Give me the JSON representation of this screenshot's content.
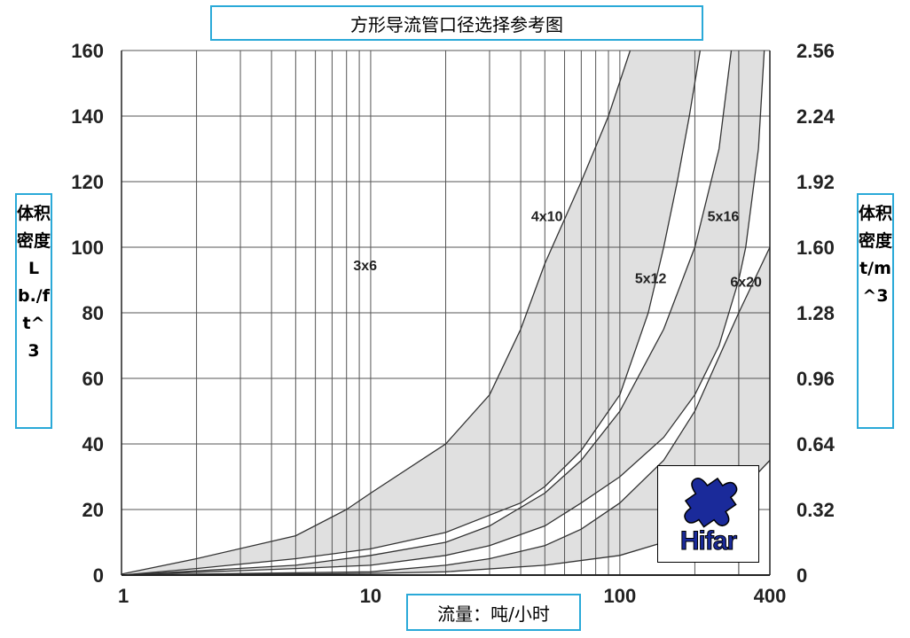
{
  "title": "方形导流管口径选择参考图",
  "xlabel": "流量：吨/小时",
  "ylabel_left": "体积密度Lb./ft^3",
  "ylabel_right": "体积密度t/m^3",
  "logo_text": "Hifar",
  "colors": {
    "label_border": "#2aa9d8",
    "band_fill": "#e0e0e0",
    "logo_blue": "#1a2a9a"
  },
  "chart_data": {
    "type": "area",
    "x_scale": "log",
    "xlim": [
      1,
      400
    ],
    "ylim": [
      0,
      160
    ],
    "y2lim": [
      0,
      2.56
    ],
    "x_ticks": [
      1,
      10,
      100,
      400
    ],
    "x_tick_labels": [
      "1",
      "10",
      "100",
      "400"
    ],
    "y_ticks": [
      0,
      20,
      40,
      60,
      80,
      100,
      120,
      140,
      160
    ],
    "y_tick_labels": [
      "0",
      "20",
      "40",
      "60",
      "80",
      "100",
      "120",
      "140",
      "160"
    ],
    "y2_tick_labels": [
      "0",
      "0.32",
      "0.64",
      "0.96",
      "1.28",
      "1.60",
      "1.92",
      "2.24",
      "2.56"
    ],
    "grid": true,
    "bands": [
      {
        "upper": [
          [
            1,
            0.3
          ],
          [
            2,
            5
          ],
          [
            5,
            12
          ],
          [
            8,
            20
          ],
          [
            10,
            25
          ],
          [
            20,
            40
          ],
          [
            30,
            55
          ],
          [
            40,
            75
          ],
          [
            50,
            95
          ],
          [
            70,
            120
          ],
          [
            90,
            140
          ],
          [
            110,
            160
          ]
        ],
        "lower": [
          [
            1,
            0
          ],
          [
            2,
            2
          ],
          [
            5,
            5
          ],
          [
            10,
            8
          ],
          [
            20,
            13
          ],
          [
            40,
            22
          ],
          [
            50,
            27
          ],
          [
            70,
            38
          ],
          [
            100,
            55
          ],
          [
            130,
            80
          ],
          [
            150,
            100
          ],
          [
            170,
            120
          ],
          [
            190,
            140
          ],
          [
            210,
            160
          ]
        ]
      },
      {
        "upper": [
          [
            1,
            0
          ],
          [
            5,
            3
          ],
          [
            10,
            6
          ],
          [
            20,
            10
          ],
          [
            30,
            15
          ],
          [
            50,
            25
          ],
          [
            70,
            35
          ],
          [
            100,
            50
          ],
          [
            150,
            75
          ],
          [
            200,
            100
          ],
          [
            250,
            130
          ],
          [
            280,
            160
          ]
        ],
        "lower": [
          [
            1,
            0
          ],
          [
            5,
            2
          ],
          [
            10,
            3
          ],
          [
            20,
            6
          ],
          [
            30,
            9
          ],
          [
            50,
            15
          ],
          [
            70,
            22
          ],
          [
            100,
            30
          ],
          [
            150,
            42
          ],
          [
            200,
            55
          ],
          [
            250,
            70
          ],
          [
            300,
            90
          ],
          [
            320,
            100
          ],
          [
            360,
            130
          ],
          [
            380,
            160
          ]
        ]
      },
      {
        "upper": [
          [
            1,
            0
          ],
          [
            10,
            1
          ],
          [
            20,
            3
          ],
          [
            30,
            5
          ],
          [
            50,
            9
          ],
          [
            70,
            14
          ],
          [
            100,
            22
          ],
          [
            150,
            35
          ],
          [
            200,
            50
          ],
          [
            300,
            80
          ],
          [
            400,
            100
          ]
        ],
        "lower": [
          [
            1,
            0
          ],
          [
            10,
            0.5
          ],
          [
            20,
            1
          ],
          [
            50,
            3
          ],
          [
            100,
            6
          ],
          [
            150,
            10
          ],
          [
            200,
            15
          ],
          [
            300,
            25
          ],
          [
            400,
            35
          ]
        ]
      }
    ],
    "series_labels": [
      {
        "text": "3x6",
        "x": 9.5,
        "y": 93
      },
      {
        "text": "4x10",
        "x": 51,
        "y": 108
      },
      {
        "text": "5x12",
        "x": 133,
        "y": 89
      },
      {
        "text": "5x16",
        "x": 260,
        "y": 108
      },
      {
        "text": "6x20",
        "x": 321,
        "y": 88
      }
    ]
  }
}
